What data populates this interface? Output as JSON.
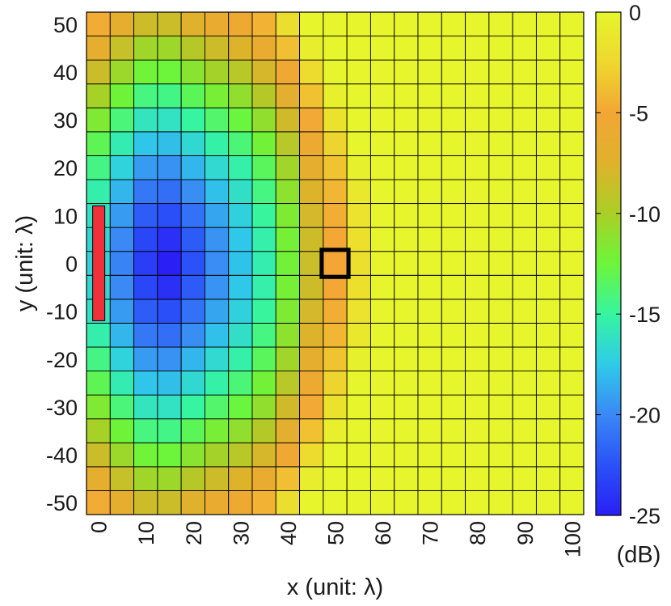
{
  "chart_data": {
    "type": "heatmap",
    "title": "",
    "xlabel": "x (unit: λ)",
    "ylabel": "y (unit: λ)",
    "x_ticks": [
      "0",
      "10",
      "20",
      "30",
      "40",
      "50",
      "60",
      "70",
      "80",
      "90",
      "100"
    ],
    "y_ticks": [
      "50",
      "40",
      "30",
      "20",
      "10",
      "0",
      "-10",
      "-20",
      "-30",
      "-40",
      "-50"
    ],
    "xlim": [
      0,
      100
    ],
    "ylim": [
      -50,
      50
    ],
    "grid": {
      "x_centers_start": 0,
      "x_step": 5,
      "nx": 21,
      "y_centers_start": -50,
      "y_step": 5,
      "ny": 21
    },
    "colorbar": {
      "label": "(dB)",
      "range": [
        -25,
        0
      ],
      "ticks": [
        "0",
        "-5",
        "-10",
        "-15",
        "-20",
        "-25"
      ]
    },
    "model": {
      "description_of_values": "received power in dB, approximated from the colors",
      "source_x": 0,
      "source_y_range": [
        -12,
        12
      ],
      "min_db": -25,
      "max_db": 0,
      "reference_point": [
        50,
        0
      ]
    },
    "annotations": {
      "source_bar": {
        "x": 0,
        "y_range": [
          -12,
          12
        ],
        "color": "#f0303a"
      },
      "marker_square": {
        "x": 50,
        "y": 0,
        "color": "#000000"
      }
    },
    "colormap": [
      "#2a1ff5",
      "#2a52f8",
      "#3a88f5",
      "#2fcbe8",
      "#36f5a0",
      "#6cf53a",
      "#aacf26",
      "#dfb22c",
      "#f3a635",
      "#eed82e",
      "#e6f52c"
    ]
  }
}
